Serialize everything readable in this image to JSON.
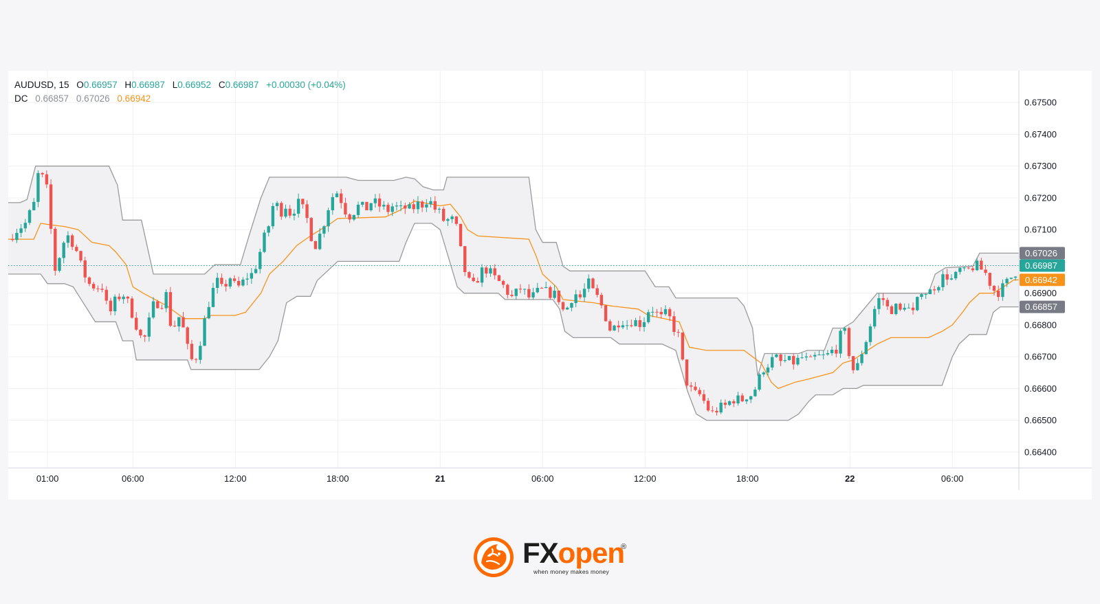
{
  "legend": {
    "symbol": "AUDUSD, 15",
    "open_label": "O",
    "open": "0.66957",
    "high_label": "H",
    "high": "0.66987",
    "low_label": "L",
    "low": "0.66952",
    "close_label": "C",
    "close": "0.66987",
    "change": "+0.00030 (+0.04%)",
    "indicator": "DC",
    "dc_lower": "0.66857",
    "dc_upper": "0.67026",
    "dc_basis": "0.66942"
  },
  "colors": {
    "up": "#26a69a",
    "down": "#ef5350",
    "band": "#9a9a9a",
    "basis": "#f7931a",
    "fill": "#f1f1f4",
    "grid": "#f0f0f3",
    "brand": "#ff6a00"
  },
  "brand": {
    "fx": "FX",
    "open": "open",
    "registered": "®",
    "tagline": "when money makes money",
    "icon": "tiger-head-icon"
  },
  "chart_data": {
    "type": "candlestick",
    "ylim": [
      0.6635,
      0.676
    ],
    "y_ticks": [
      "0.67500",
      "0.67400",
      "0.67300",
      "0.67200",
      "0.67100",
      "0.66900",
      "0.66800",
      "0.66700",
      "0.66600",
      "0.66500",
      "0.66400"
    ],
    "x_ticks": [
      {
        "label": "01:00",
        "t": 1,
        "bold": false
      },
      {
        "label": "06:00",
        "t": 6,
        "bold": false
      },
      {
        "label": "12:00",
        "t": 12,
        "bold": false
      },
      {
        "label": "18:00",
        "t": 18,
        "bold": false
      },
      {
        "label": "21",
        "t": 24,
        "bold": true
      },
      {
        "label": "06:00",
        "t": 30,
        "bold": false
      },
      {
        "label": "12:00",
        "t": 36,
        "bold": false
      },
      {
        "label": "18:00",
        "t": 42,
        "bold": false
      },
      {
        "label": "22",
        "t": 48,
        "bold": true
      },
      {
        "label": "06:00",
        "t": 54,
        "bold": false
      }
    ],
    "price_tags": [
      {
        "value": 0.67026,
        "label": "0.67026",
        "color": "#787b86"
      },
      {
        "value": 0.66987,
        "label": "0.66987",
        "color": "#26a69a"
      },
      {
        "value": 0.66942,
        "label": "0.66942",
        "color": "#f7931a"
      },
      {
        "value": 0.66857,
        "label": "0.66857",
        "color": "#787b86"
      }
    ],
    "last_price": 0.66987,
    "close_path": [
      [
        -1.3,
        0.6707
      ],
      [
        -0.8,
        0.671
      ],
      [
        -0.3,
        0.6712
      ],
      [
        0.2,
        0.6718
      ],
      [
        0.5,
        0.6729
      ],
      [
        0.8,
        0.6725
      ],
      [
        1.0,
        0.6722
      ],
      [
        1.2,
        0.671
      ],
      [
        1.5,
        0.6695
      ],
      [
        1.8,
        0.6705
      ],
      [
        2.2,
        0.6708
      ],
      [
        2.6,
        0.6705
      ],
      [
        3.0,
        0.6698
      ],
      [
        3.4,
        0.6693
      ],
      [
        3.8,
        0.6692
      ],
      [
        4.2,
        0.6692
      ],
      [
        4.6,
        0.6683
      ],
      [
        5.0,
        0.6688
      ],
      [
        5.4,
        0.669
      ],
      [
        5.8,
        0.6686
      ],
      [
        6.2,
        0.668
      ],
      [
        6.6,
        0.6674
      ],
      [
        7.0,
        0.6682
      ],
      [
        7.3,
        0.6688
      ],
      [
        7.6,
        0.6686
      ],
      [
        8.0,
        0.669
      ],
      [
        8.3,
        0.6676
      ],
      [
        8.6,
        0.6684
      ],
      [
        9.0,
        0.6678
      ],
      [
        9.3,
        0.667
      ],
      [
        9.6,
        0.6668
      ],
      [
        10.0,
        0.6676
      ],
      [
        10.3,
        0.6684
      ],
      [
        10.6,
        0.669
      ],
      [
        11.0,
        0.6694
      ],
      [
        11.3,
        0.669
      ],
      [
        11.6,
        0.6696
      ],
      [
        12.0,
        0.6692
      ],
      [
        12.3,
        0.6692
      ],
      [
        12.6,
        0.6695
      ],
      [
        13.0,
        0.6696
      ],
      [
        13.3,
        0.67
      ],
      [
        13.6,
        0.6706
      ],
      [
        14.0,
        0.6712
      ],
      [
        14.3,
        0.672
      ],
      [
        14.6,
        0.6715
      ],
      [
        15.0,
        0.6718
      ],
      [
        15.3,
        0.6714
      ],
      [
        15.6,
        0.6719
      ],
      [
        16.0,
        0.6716
      ],
      [
        16.3,
        0.6712
      ],
      [
        16.6,
        0.6704
      ],
      [
        17.0,
        0.6709
      ],
      [
        17.3,
        0.6714
      ],
      [
        17.6,
        0.672
      ],
      [
        18.0,
        0.6722
      ],
      [
        18.3,
        0.6718
      ],
      [
        18.6,
        0.6714
      ],
      [
        19.0,
        0.6716
      ],
      [
        19.3,
        0.6718
      ],
      [
        19.6,
        0.6716
      ],
      [
        20.0,
        0.6719
      ],
      [
        20.3,
        0.6718
      ],
      [
        20.6,
        0.6717
      ],
      [
        21.0,
        0.6716
      ],
      [
        21.3,
        0.6718
      ],
      [
        21.6,
        0.6716
      ],
      [
        22.0,
        0.6717
      ],
      [
        22.3,
        0.6716
      ],
      [
        22.6,
        0.6718
      ],
      [
        23.0,
        0.6718
      ],
      [
        23.3,
        0.672
      ],
      [
        23.6,
        0.6717
      ],
      [
        24.0,
        0.6715
      ],
      [
        24.3,
        0.6712
      ],
      [
        24.6,
        0.6714
      ],
      [
        25.0,
        0.671
      ],
      [
        25.3,
        0.67
      ],
      [
        25.6,
        0.6694
      ],
      [
        26.0,
        0.6692
      ],
      [
        26.3,
        0.6696
      ],
      [
        26.6,
        0.6698
      ],
      [
        27.0,
        0.6696
      ],
      [
        27.3,
        0.6694
      ],
      [
        27.6,
        0.6693
      ],
      [
        28.0,
        0.669
      ],
      [
        28.3,
        0.6688
      ],
      [
        28.6,
        0.6692
      ],
      [
        29.0,
        0.669
      ],
      [
        29.3,
        0.6688
      ],
      [
        29.6,
        0.669
      ],
      [
        30.0,
        0.6691
      ],
      [
        30.3,
        0.669
      ],
      [
        30.6,
        0.669
      ],
      [
        31.0,
        0.6688
      ],
      [
        31.3,
        0.6683
      ],
      [
        31.6,
        0.6688
      ],
      [
        32.0,
        0.669
      ],
      [
        32.3,
        0.6688
      ],
      [
        32.6,
        0.6694
      ],
      [
        33.0,
        0.669
      ],
      [
        33.3,
        0.6688
      ],
      [
        33.6,
        0.6684
      ],
      [
        34.0,
        0.6678
      ],
      [
        34.3,
        0.668
      ],
      [
        34.6,
        0.6682
      ],
      [
        35.0,
        0.668
      ],
      [
        35.3,
        0.6682
      ],
      [
        35.6,
        0.668
      ],
      [
        36.0,
        0.6682
      ],
      [
        36.3,
        0.6686
      ],
      [
        36.6,
        0.6684
      ],
      [
        37.0,
        0.6682
      ],
      [
        37.3,
        0.6684
      ],
      [
        37.6,
        0.668
      ],
      [
        38.0,
        0.6676
      ],
      [
        38.3,
        0.6664
      ],
      [
        38.6,
        0.666
      ],
      [
        39.0,
        0.6658
      ],
      [
        39.3,
        0.6658
      ],
      [
        39.6,
        0.6654
      ],
      [
        40.0,
        0.6652
      ],
      [
        40.3,
        0.6654
      ],
      [
        40.6,
        0.6654
      ],
      [
        41.0,
        0.6656
      ],
      [
        41.3,
        0.6657
      ],
      [
        41.6,
        0.6656
      ],
      [
        42.0,
        0.6658
      ],
      [
        42.3,
        0.6658
      ],
      [
        42.6,
        0.6662
      ],
      [
        43.0,
        0.6667
      ],
      [
        43.3,
        0.6668
      ],
      [
        43.6,
        0.667
      ],
      [
        44.0,
        0.6668
      ],
      [
        44.3,
        0.6669
      ],
      [
        44.6,
        0.6668
      ],
      [
        45.0,
        0.6669
      ],
      [
        45.3,
        0.667
      ],
      [
        45.6,
        0.6668
      ],
      [
        46.0,
        0.667
      ],
      [
        46.3,
        0.667
      ],
      [
        46.6,
        0.667
      ],
      [
        47.0,
        0.6672
      ],
      [
        47.3,
        0.6673
      ],
      [
        47.6,
        0.668
      ],
      [
        48.0,
        0.667
      ],
      [
        48.3,
        0.6664
      ],
      [
        48.6,
        0.667
      ],
      [
        49.0,
        0.6676
      ],
      [
        49.3,
        0.6682
      ],
      [
        49.6,
        0.6688
      ],
      [
        50.0,
        0.6688
      ],
      [
        50.3,
        0.6684
      ],
      [
        50.6,
        0.6686
      ],
      [
        51.0,
        0.6684
      ],
      [
        51.3,
        0.6688
      ],
      [
        51.6,
        0.6682
      ],
      [
        52.0,
        0.6688
      ],
      [
        52.3,
        0.6694
      ],
      [
        52.6,
        0.6694
      ],
      [
        53.0,
        0.6692
      ],
      [
        53.3,
        0.6694
      ],
      [
        53.6,
        0.6696
      ],
      [
        54.0,
        0.6694
      ],
      [
        54.3,
        0.6696
      ],
      [
        54.6,
        0.6699
      ],
      [
        55.0,
        0.6697
      ],
      [
        55.3,
        0.6699
      ],
      [
        55.6,
        0.6698
      ],
      [
        56.0,
        0.6696
      ],
      [
        56.3,
        0.6692
      ],
      [
        56.6,
        0.669
      ],
      [
        57.0,
        0.6692
      ],
      [
        57.3,
        0.6694
      ],
      [
        57.6,
        0.6696
      ],
      [
        57.9,
        0.6698
      ]
    ],
    "dc_upper_path": [
      [
        -1.3,
        0.67185
      ],
      [
        -0.6,
        0.67185
      ],
      [
        -0.2,
        0.67195
      ],
      [
        0.3,
        0.673
      ],
      [
        4.6,
        0.673
      ],
      [
        5.1,
        0.6724
      ],
      [
        5.4,
        0.6713
      ],
      [
        6.5,
        0.6713
      ],
      [
        7.2,
        0.6696
      ],
      [
        10.2,
        0.6696
      ],
      [
        10.8,
        0.6699
      ],
      [
        12.3,
        0.6699
      ],
      [
        12.8,
        0.6708
      ],
      [
        13.5,
        0.672
      ],
      [
        14.0,
        0.67265
      ],
      [
        18.5,
        0.67265
      ],
      [
        19.2,
        0.67255
      ],
      [
        21.3,
        0.67255
      ],
      [
        22.0,
        0.67265
      ],
      [
        22.5,
        0.6726
      ],
      [
        23.0,
        0.67235
      ],
      [
        23.6,
        0.67225
      ],
      [
        24.2,
        0.67225
      ],
      [
        24.4,
        0.67265
      ],
      [
        29.2,
        0.67265
      ],
      [
        29.6,
        0.671
      ],
      [
        30.0,
        0.6706
      ],
      [
        30.8,
        0.6706
      ],
      [
        31.2,
        0.66985
      ],
      [
        31.6,
        0.6697
      ],
      [
        36.0,
        0.6697
      ],
      [
        36.6,
        0.6692
      ],
      [
        37.4,
        0.6692
      ],
      [
        37.8,
        0.66885
      ],
      [
        41.4,
        0.66885
      ],
      [
        41.8,
        0.6686
      ],
      [
        42.3,
        0.6679
      ],
      [
        42.6,
        0.6664
      ],
      [
        43.0,
        0.6671
      ],
      [
        45.0,
        0.6671
      ],
      [
        45.5,
        0.6672
      ],
      [
        46.5,
        0.6672
      ],
      [
        47.0,
        0.6679
      ],
      [
        47.6,
        0.6679
      ],
      [
        48.2,
        0.6681
      ],
      [
        49.6,
        0.669
      ],
      [
        52.6,
        0.669
      ],
      [
        53.0,
        0.6696
      ],
      [
        53.6,
        0.6698
      ],
      [
        55.2,
        0.66985
      ],
      [
        55.6,
        0.67026
      ],
      [
        57.9,
        0.67026
      ]
    ],
    "dc_lower_path": [
      [
        -1.3,
        0.6696
      ],
      [
        0.6,
        0.6696
      ],
      [
        1.0,
        0.6693
      ],
      [
        2.0,
        0.6693
      ],
      [
        2.5,
        0.6692
      ],
      [
        3.8,
        0.6681
      ],
      [
        5.0,
        0.6681
      ],
      [
        5.4,
        0.6675
      ],
      [
        6.0,
        0.6675
      ],
      [
        6.2,
        0.6669
      ],
      [
        9.2,
        0.6669
      ],
      [
        9.4,
        0.6666
      ],
      [
        13.4,
        0.6666
      ],
      [
        14.0,
        0.667
      ],
      [
        14.5,
        0.6675
      ],
      [
        15.0,
        0.6687
      ],
      [
        15.6,
        0.6689
      ],
      [
        16.4,
        0.6689
      ],
      [
        16.8,
        0.6694
      ],
      [
        18.0,
        0.67
      ],
      [
        21.6,
        0.67
      ],
      [
        22.0,
        0.6706
      ],
      [
        22.5,
        0.6712
      ],
      [
        23.5,
        0.6712
      ],
      [
        24.0,
        0.671
      ],
      [
        25.0,
        0.6692
      ],
      [
        25.4,
        0.669
      ],
      [
        27.4,
        0.669
      ],
      [
        27.8,
        0.6688
      ],
      [
        30.6,
        0.6688
      ],
      [
        31.0,
        0.6685
      ],
      [
        31.3,
        0.6678
      ],
      [
        31.8,
        0.6676
      ],
      [
        34.0,
        0.6676
      ],
      [
        34.5,
        0.6674
      ],
      [
        37.0,
        0.6674
      ],
      [
        37.8,
        0.6672
      ],
      [
        38.5,
        0.6659
      ],
      [
        39.0,
        0.6652
      ],
      [
        39.6,
        0.665
      ],
      [
        44.4,
        0.665
      ],
      [
        45.0,
        0.6652
      ],
      [
        45.6,
        0.6656
      ],
      [
        46.0,
        0.6658
      ],
      [
        47.0,
        0.6658
      ],
      [
        47.6,
        0.666
      ],
      [
        48.4,
        0.666
      ],
      [
        48.8,
        0.6661
      ],
      [
        53.4,
        0.6661
      ],
      [
        54.0,
        0.667
      ],
      [
        54.4,
        0.6674
      ],
      [
        55.0,
        0.6677
      ],
      [
        56.0,
        0.6677
      ],
      [
        56.4,
        0.6684
      ],
      [
        56.8,
        0.66857
      ],
      [
        57.9,
        0.66857
      ]
    ],
    "dc_basis_path": [
      [
        -1.3,
        0.6707
      ],
      [
        0.2,
        0.6707
      ],
      [
        0.6,
        0.6712
      ],
      [
        1.2,
        0.67115
      ],
      [
        2.0,
        0.6711
      ],
      [
        2.8,
        0.671
      ],
      [
        3.6,
        0.6706
      ],
      [
        4.6,
        0.6705
      ],
      [
        5.0,
        0.6703
      ],
      [
        5.6,
        0.6699
      ],
      [
        6.0,
        0.6692
      ],
      [
        6.6,
        0.669
      ],
      [
        8.0,
        0.6686
      ],
      [
        9.0,
        0.6682
      ],
      [
        10.2,
        0.6682
      ],
      [
        10.6,
        0.6683
      ],
      [
        12.0,
        0.6683
      ],
      [
        12.6,
        0.6684
      ],
      [
        13.5,
        0.669
      ],
      [
        14.0,
        0.6696
      ],
      [
        14.8,
        0.67
      ],
      [
        15.6,
        0.6705
      ],
      [
        16.4,
        0.6708
      ],
      [
        17.0,
        0.671
      ],
      [
        17.6,
        0.6712
      ],
      [
        18.0,
        0.67135
      ],
      [
        20.8,
        0.6714
      ],
      [
        21.6,
        0.6716
      ],
      [
        22.5,
        0.6719
      ],
      [
        24.0,
        0.67175
      ],
      [
        24.6,
        0.6718
      ],
      [
        25.2,
        0.6714
      ],
      [
        25.6,
        0.671
      ],
      [
        26.2,
        0.6708
      ],
      [
        29.2,
        0.6707
      ],
      [
        29.6,
        0.6702
      ],
      [
        30.0,
        0.6696
      ],
      [
        30.8,
        0.6692
      ],
      [
        31.2,
        0.6688
      ],
      [
        33.0,
        0.6687
      ],
      [
        34.0,
        0.6686
      ],
      [
        35.6,
        0.6685
      ],
      [
        36.2,
        0.6683
      ],
      [
        38.0,
        0.6681
      ],
      [
        38.6,
        0.6673
      ],
      [
        39.6,
        0.6672
      ],
      [
        41.8,
        0.6672
      ],
      [
        42.3,
        0.667
      ],
      [
        42.8,
        0.6668
      ],
      [
        43.4,
        0.6662
      ],
      [
        43.8,
        0.666
      ],
      [
        44.8,
        0.6662
      ],
      [
        45.6,
        0.6663
      ],
      [
        47.0,
        0.6665
      ],
      [
        47.6,
        0.6668
      ],
      [
        48.2,
        0.6669
      ],
      [
        49.6,
        0.6674
      ],
      [
        50.4,
        0.6676
      ],
      [
        52.6,
        0.6676
      ],
      [
        53.4,
        0.6678
      ],
      [
        54.0,
        0.668
      ],
      [
        54.6,
        0.6684
      ],
      [
        55.0,
        0.6687
      ],
      [
        55.6,
        0.669
      ],
      [
        56.4,
        0.669
      ],
      [
        57.0,
        0.6692
      ],
      [
        57.6,
        0.66942
      ],
      [
        57.9,
        0.66942
      ]
    ]
  }
}
